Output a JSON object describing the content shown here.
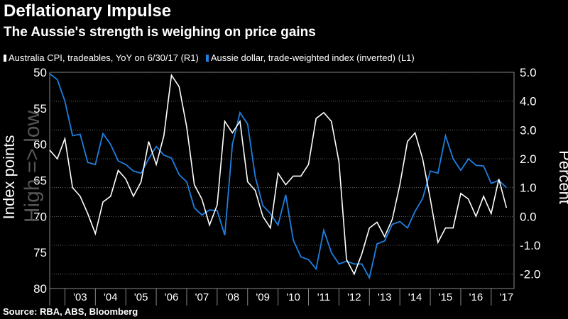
{
  "colors": {
    "background": "#000000",
    "cpi": "#ffffff",
    "aud": "#1f7fe0",
    "grid": "#777777",
    "watermark": "#555555"
  },
  "chart_data": {
    "type": "line",
    "title": "Deflationary Impulse",
    "subtitle": "The Aussie's strength is weighing on price gains",
    "source": "Source: RBA, ABS, Bloomberg",
    "watermark": "High => low",
    "left_axis": {
      "label": "Index points",
      "range": [
        80,
        50
      ],
      "inverted": true,
      "ticks": [
        "50",
        "55",
        "60",
        "65",
        "70",
        "75",
        "80"
      ]
    },
    "right_axis": {
      "label": "Percent",
      "range": [
        -2.5,
        5.0
      ],
      "ticks": [
        "5.0",
        "4.0",
        "3.0",
        "2.0",
        "1.0",
        "0.0",
        "-1.0",
        "-2.0"
      ]
    },
    "x_labels": [
      "'03",
      "'04",
      "'05",
      "'06",
      "'07",
      "'08",
      "'09",
      "'10",
      "'11",
      "'12",
      "'13",
      "'14",
      "'15",
      "'16",
      "'17"
    ],
    "x_range": [
      2002.5,
      2017.75
    ],
    "series": [
      {
        "name": "Australia CPI, tradeables, YoY on 6/30/17 (R1)",
        "axis": "right",
        "points": [
          [
            2002.5,
            2.3
          ],
          [
            2002.75,
            2.0
          ],
          [
            2003.0,
            2.7
          ],
          [
            2003.25,
            1.0
          ],
          [
            2003.5,
            0.7
          ],
          [
            2003.75,
            0.1
          ],
          [
            2004.0,
            -0.6
          ],
          [
            2004.25,
            0.5
          ],
          [
            2004.5,
            0.7
          ],
          [
            2004.75,
            1.6
          ],
          [
            2005.0,
            1.3
          ],
          [
            2005.25,
            0.7
          ],
          [
            2005.5,
            1.2
          ],
          [
            2005.75,
            2.6
          ],
          [
            2006.0,
            1.8
          ],
          [
            2006.25,
            2.8
          ],
          [
            2006.5,
            4.9
          ],
          [
            2006.75,
            4.5
          ],
          [
            2007.0,
            3.1
          ],
          [
            2007.25,
            1.1
          ],
          [
            2007.5,
            0.6
          ],
          [
            2007.75,
            -0.3
          ],
          [
            2008.0,
            0.4
          ],
          [
            2008.25,
            3.3
          ],
          [
            2008.5,
            2.9
          ],
          [
            2008.75,
            3.3
          ],
          [
            2009.0,
            1.2
          ],
          [
            2009.25,
            0.9
          ],
          [
            2009.5,
            0.0
          ],
          [
            2009.75,
            -0.4
          ],
          [
            2010.0,
            1.5
          ],
          [
            2010.25,
            1.1
          ],
          [
            2010.5,
            1.4
          ],
          [
            2010.75,
            1.4
          ],
          [
            2011.0,
            1.8
          ],
          [
            2011.25,
            3.4
          ],
          [
            2011.5,
            3.6
          ],
          [
            2011.75,
            3.3
          ],
          [
            2012.0,
            1.9
          ],
          [
            2012.25,
            -1.5
          ],
          [
            2012.5,
            -2.0
          ],
          [
            2012.75,
            -1.3
          ],
          [
            2013.0,
            -0.4
          ],
          [
            2013.25,
            -0.2
          ],
          [
            2013.5,
            -0.7
          ],
          [
            2013.75,
            -0.1
          ],
          [
            2014.0,
            1.1
          ],
          [
            2014.25,
            2.6
          ],
          [
            2014.5,
            2.9
          ],
          [
            2014.75,
            2.0
          ],
          [
            2015.0,
            0.6
          ],
          [
            2015.25,
            -0.9
          ],
          [
            2015.5,
            -0.4
          ],
          [
            2015.75,
            -0.4
          ],
          [
            2016.0,
            0.8
          ],
          [
            2016.25,
            0.6
          ],
          [
            2016.5,
            0.0
          ],
          [
            2016.75,
            0.7
          ],
          [
            2017.0,
            0.1
          ],
          [
            2017.25,
            1.3
          ],
          [
            2017.5,
            0.3
          ]
        ]
      },
      {
        "name": "Aussie dollar, trade-weighted index (inverted) (L1)",
        "axis": "left",
        "points": [
          [
            2002.5,
            50.2
          ],
          [
            2002.75,
            51.0
          ],
          [
            2003.0,
            54.0
          ],
          [
            2003.25,
            58.8
          ],
          [
            2003.5,
            58.6
          ],
          [
            2003.75,
            62.5
          ],
          [
            2004.0,
            62.8
          ],
          [
            2004.25,
            58.5
          ],
          [
            2004.5,
            60.0
          ],
          [
            2004.75,
            62.3
          ],
          [
            2005.0,
            62.8
          ],
          [
            2005.25,
            63.7
          ],
          [
            2005.5,
            64.0
          ],
          [
            2005.75,
            62.0
          ],
          [
            2006.0,
            60.3
          ],
          [
            2006.25,
            61.5
          ],
          [
            2006.5,
            61.9
          ],
          [
            2006.75,
            64.2
          ],
          [
            2007.0,
            65.2
          ],
          [
            2007.25,
            68.8
          ],
          [
            2007.5,
            69.8
          ],
          [
            2007.75,
            69.1
          ],
          [
            2008.0,
            69.2
          ],
          [
            2008.25,
            72.6
          ],
          [
            2008.5,
            60.0
          ],
          [
            2008.75,
            55.6
          ],
          [
            2009.0,
            57.2
          ],
          [
            2009.25,
            64.5
          ],
          [
            2009.5,
            68.5
          ],
          [
            2009.75,
            69.6
          ],
          [
            2010.0,
            71.2
          ],
          [
            2010.25,
            67.0
          ],
          [
            2010.5,
            73.3
          ],
          [
            2010.75,
            75.6
          ],
          [
            2011.0,
            76.0
          ],
          [
            2011.25,
            77.3
          ],
          [
            2011.5,
            71.9
          ],
          [
            2011.75,
            75.0
          ],
          [
            2012.0,
            76.6
          ],
          [
            2012.25,
            76.2
          ],
          [
            2012.5,
            76.6
          ],
          [
            2012.75,
            76.6
          ],
          [
            2013.0,
            78.5
          ],
          [
            2013.25,
            73.8
          ],
          [
            2013.5,
            73.4
          ],
          [
            2013.75,
            71.1
          ],
          [
            2014.0,
            70.7
          ],
          [
            2014.25,
            71.6
          ],
          [
            2014.5,
            69.3
          ],
          [
            2014.75,
            67.5
          ],
          [
            2015.0,
            63.7
          ],
          [
            2015.25,
            64.0
          ],
          [
            2015.5,
            58.8
          ],
          [
            2015.75,
            62.0
          ],
          [
            2016.0,
            63.6
          ],
          [
            2016.25,
            62.0
          ],
          [
            2016.5,
            62.9
          ],
          [
            2016.75,
            63.0
          ],
          [
            2017.0,
            65.4
          ],
          [
            2017.25,
            65.0
          ],
          [
            2017.5,
            66.0
          ]
        ]
      }
    ]
  }
}
